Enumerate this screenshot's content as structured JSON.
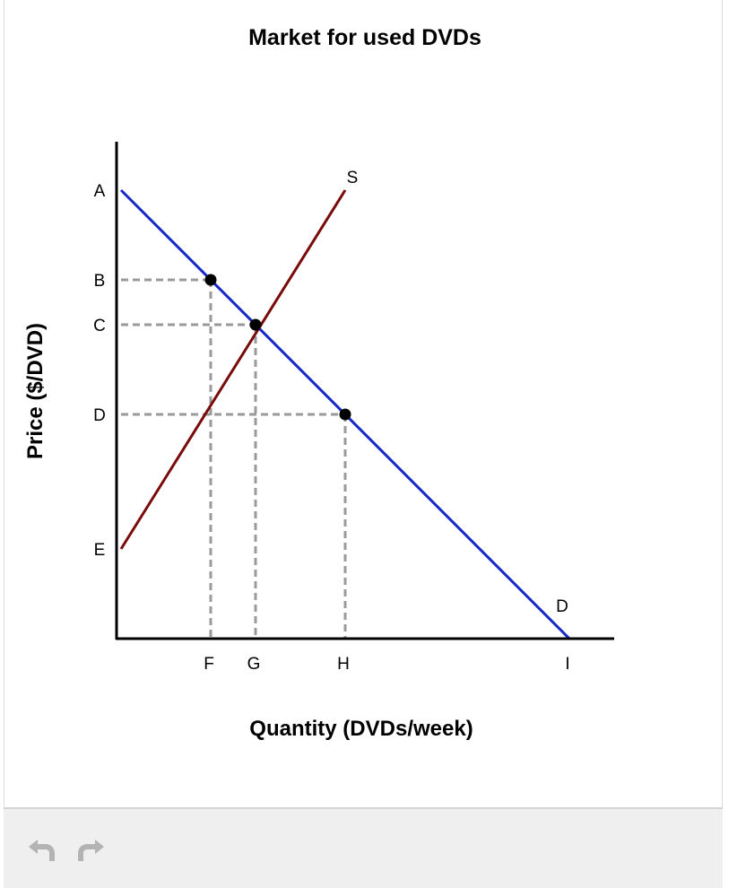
{
  "chart_data": {
    "type": "line",
    "title": "Market for used DVDs",
    "xlabel": "Quantity (DVDs/week)",
    "ylabel": "Price ($/DVD)",
    "x_ticks": [
      "F",
      "G",
      "H",
      "I"
    ],
    "y_ticks": [
      "A",
      "B",
      "C",
      "D",
      "E"
    ],
    "tick_values": {
      "x": {
        "F": 100,
        "G": 150,
        "H": 250,
        "I": 500
      },
      "y": {
        "A": 500,
        "B": 400,
        "C": 350,
        "D": 250,
        "E": 100
      }
    },
    "xlim": [
      0,
      550
    ],
    "ylim": [
      0,
      550
    ],
    "series": [
      {
        "name": "D",
        "color": "#1428c8",
        "points": [
          [
            0,
            500
          ],
          [
            500,
            0
          ]
        ]
      },
      {
        "name": "S",
        "color": "#7a0a0a",
        "points": [
          [
            0,
            100
          ],
          [
            250,
            500
          ]
        ]
      }
    ],
    "markers": [
      [
        100,
        400
      ],
      [
        150,
        350
      ],
      [
        250,
        250
      ]
    ],
    "dashed_guides": [
      {
        "price": "B",
        "quantity": "F"
      },
      {
        "price": "C",
        "quantity": "G"
      },
      {
        "price": "D",
        "quantity": "H"
      }
    ],
    "guide_color": "#9a9a9a",
    "grid": false,
    "legend": "none"
  },
  "toolbar": {
    "undo_icon": "undo-icon",
    "redo_icon": "redo-icon"
  }
}
